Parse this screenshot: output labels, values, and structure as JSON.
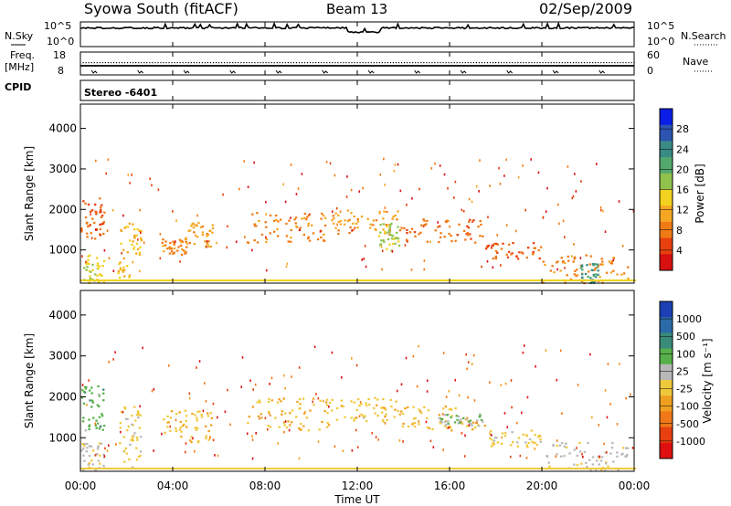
{
  "header": {
    "station": "Syowa South (fitACF)",
    "beam": "Beam 13",
    "date": "02/Sep/2009"
  },
  "noise_panel": {
    "left_label": "N.Sky",
    "right_label": "N.Search",
    "y_tick_top": "10^5",
    "y_tick_bottom": "10^0"
  },
  "freq_panel": {
    "left_label_1": "Freq.",
    "left_label_2": "[MHz]",
    "left_ticks": [
      "18",
      "8"
    ],
    "right_label": "Nave",
    "right_ticks": [
      "60",
      "0"
    ]
  },
  "cpid": {
    "label": "CPID",
    "value": "Stereo  -6401"
  },
  "power_panel": {
    "ylabel": "Slant Range [km]",
    "yticks": [
      "4000",
      "3000",
      "2000",
      "1000"
    ],
    "colorbar_label": "Power [dB]",
    "colorbar_ticks": [
      "28",
      "24",
      "20",
      "16",
      "12",
      "8",
      "4"
    ],
    "colors": [
      "#0a1ee8",
      "#2b55b0",
      "#3a8b86",
      "#53a86e",
      "#91c24d",
      "#f2d21e",
      "#f5a623",
      "#f07a14",
      "#e8400f",
      "#d81010"
    ]
  },
  "velocity_panel": {
    "ylabel": "Slant Range [km]",
    "yticks": [
      "4000",
      "3000",
      "2000",
      "1000"
    ],
    "colorbar_label": "Velocity [m s⁻¹]",
    "colorbar_ticks": [
      "1000",
      "500",
      "100",
      "25",
      "-25",
      "-100",
      "-500",
      "-1000"
    ],
    "colors": [
      "#1c3fb4",
      "#2b6aa8",
      "#3a8b7a",
      "#58b04a",
      "#b8b8b8",
      "#f0c83c",
      "#f0a020",
      "#f07818",
      "#e84010",
      "#e01010"
    ]
  },
  "xaxis": {
    "label": "Time UT",
    "ticks": [
      "00:00",
      "04:00",
      "08:00",
      "12:00",
      "16:00",
      "20:00",
      "00:00"
    ]
  },
  "chart_data": [
    {
      "type": "line",
      "title": "Syowa South (fitACF) Beam 13 02/Sep/2009",
      "series": [
        {
          "name": "N.Sky",
          "x": [
            0,
            11.5,
            11.6,
            12.9,
            13.0,
            24
          ],
          "values": [
            10000,
            10000,
            1000,
            1000,
            10000,
            10000
          ]
        }
      ],
      "xlabel": "",
      "ylabel": "N.Sky"
    },
    {
      "type": "line",
      "series": [
        {
          "name": "Freq.",
          "x": [
            0,
            24
          ],
          "values": [
            12,
            12
          ]
        }
      ],
      "xlabel": "",
      "ylabel": "Freq. [MHz]",
      "ylim": [
        8,
        18
      ]
    },
    {
      "type": "heatmap",
      "title": "Power [dB]",
      "xlabel": "Time UT",
      "ylabel": "Slant Range [km]",
      "xlim": [
        0,
        24
      ],
      "ylim": [
        180,
        4600
      ],
      "zlim": [
        0,
        30
      ],
      "regions": [
        {
          "t0": 0.0,
          "t1": 1.0,
          "r0": 1200,
          "r1": 2300,
          "z": 6
        },
        {
          "t0": 0.0,
          "t1": 1.0,
          "r0": 200,
          "r1": 900,
          "z": 14
        },
        {
          "t0": 1.6,
          "t1": 2.6,
          "r0": 300,
          "r1": 1800,
          "z": 12
        },
        {
          "t0": 3.5,
          "t1": 4.6,
          "r0": 900,
          "r1": 1300,
          "z": 8
        },
        {
          "t0": 4.5,
          "t1": 5.7,
          "r0": 1100,
          "r1": 1700,
          "z": 10
        },
        {
          "t0": 7.2,
          "t1": 10.8,
          "r0": 1200,
          "r1": 2000,
          "z": 8
        },
        {
          "t0": 10.8,
          "t1": 13.8,
          "r0": 1400,
          "r1": 2000,
          "z": 10
        },
        {
          "t0": 12.9,
          "t1": 13.8,
          "r0": 1000,
          "r1": 1700,
          "z": 16
        },
        {
          "t0": 13.8,
          "t1": 17.5,
          "r0": 1200,
          "r1": 1800,
          "z": 7
        },
        {
          "t0": 17.5,
          "t1": 20.0,
          "r0": 800,
          "r1": 1200,
          "z": 6
        },
        {
          "t0": 20.0,
          "t1": 23.7,
          "r0": 200,
          "r1": 900,
          "z": 8
        },
        {
          "t0": 21.6,
          "t1": 22.4,
          "r0": 200,
          "r1": 700,
          "z": 22
        }
      ]
    },
    {
      "type": "heatmap",
      "title": "Velocity [m s-1]",
      "xlabel": "Time UT",
      "ylabel": "Slant Range [km]",
      "xlim": [
        0,
        24
      ],
      "ylim": [
        180,
        4600
      ],
      "zlim": [
        -1000,
        1000
      ],
      "regions": [
        {
          "t0": 0.0,
          "t1": 1.0,
          "r0": 1200,
          "r1": 2300,
          "z": 300
        },
        {
          "t0": 0.0,
          "t1": 1.0,
          "r0": 200,
          "r1": 900,
          "z": 50
        },
        {
          "t0": 1.6,
          "t1": 2.6,
          "r0": 300,
          "r1": 1800,
          "z": -60
        },
        {
          "t0": 3.5,
          "t1": 5.7,
          "r0": 900,
          "r1": 1700,
          "z": -150
        },
        {
          "t0": 7.2,
          "t1": 10.8,
          "r0": 1200,
          "r1": 2000,
          "z": -200
        },
        {
          "t0": 10.8,
          "t1": 13.8,
          "r0": 1400,
          "r1": 2000,
          "z": -120
        },
        {
          "t0": 13.8,
          "t1": 17.5,
          "r0": 1200,
          "r1": 1800,
          "z": -150
        },
        {
          "t0": 15.5,
          "t1": 17.5,
          "r0": 1300,
          "r1": 1600,
          "z": 150
        },
        {
          "t0": 17.5,
          "t1": 20.0,
          "r0": 800,
          "r1": 1200,
          "z": -80
        },
        {
          "t0": 20.0,
          "t1": 23.7,
          "r0": 200,
          "r1": 900,
          "z": 80
        }
      ]
    }
  ]
}
